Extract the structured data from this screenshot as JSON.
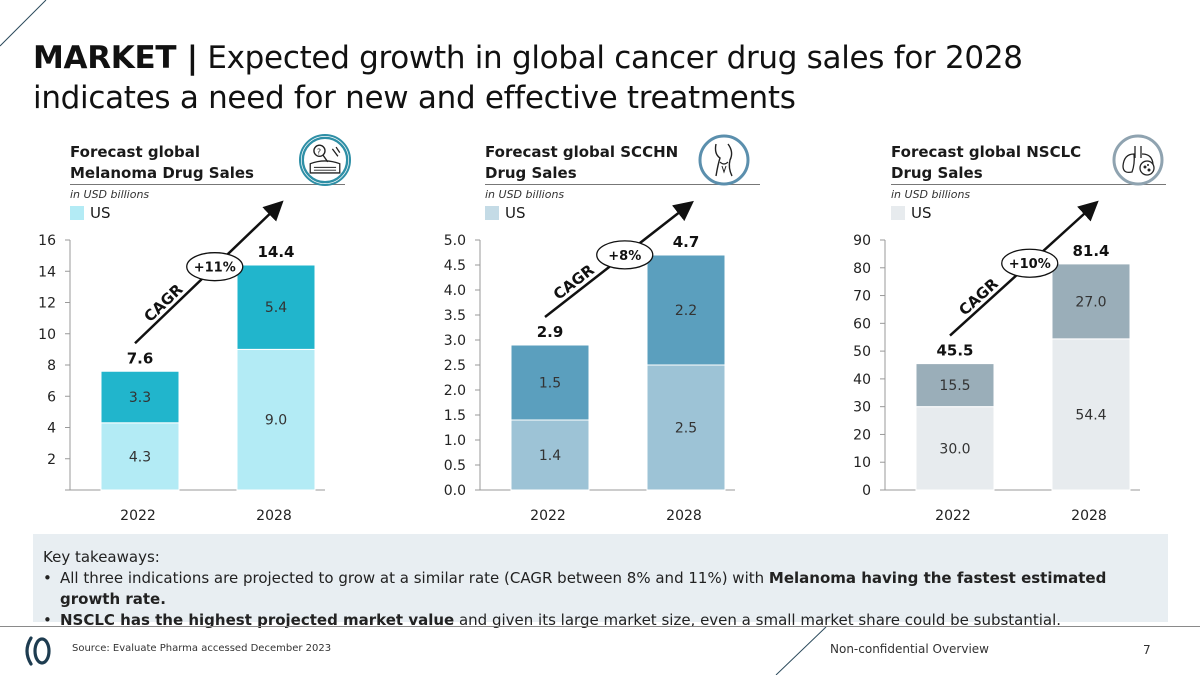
{
  "title": {
    "bold": "MARKET |",
    "rest": "Expected growth in global cancer drug sales for 2028 indicates a need for new and effective treatments"
  },
  "chart_data": [
    {
      "type": "bar",
      "stacked": true,
      "title": "Forecast global Melanoma Drug Sales",
      "unit": "in USD billions",
      "legend": [
        "US"
      ],
      "categories": [
        "2022",
        "2028"
      ],
      "series": [
        {
          "name": "lower segment",
          "values": [
            4.3,
            9.0
          ],
          "color": "#b3ebf5"
        },
        {
          "name": "upper segment",
          "values": [
            3.3,
            5.4
          ],
          "color": "#21b5cc"
        }
      ],
      "totals": [
        7.6,
        14.4
      ],
      "totals_labels": [
        "7.6",
        "14.4"
      ],
      "value_labels": [
        [
          "4.3",
          "9.0"
        ],
        [
          "3.3",
          "5.4"
        ]
      ],
      "ylim": [
        0,
        16
      ],
      "yticks": [
        0,
        2,
        4,
        6,
        8,
        10,
        12,
        14,
        16
      ],
      "ytick_labels": [
        "",
        "2",
        "4",
        "6",
        "8",
        "10",
        "12",
        "14",
        "16"
      ],
      "cagr_label": "CAGR",
      "cagr_value": "+11%",
      "legend_color": "#b3ebf5"
    },
    {
      "type": "bar",
      "stacked": true,
      "title": "Forecast global SCCHN Drug Sales",
      "unit": "in USD billions",
      "legend": [
        "US"
      ],
      "categories": [
        "2022",
        "2028"
      ],
      "series": [
        {
          "name": "lower segment",
          "values": [
            1.4,
            2.5
          ],
          "color": "#9dc3d6"
        },
        {
          "name": "upper segment",
          "values": [
            1.5,
            2.2
          ],
          "color": "#5b9fbe"
        }
      ],
      "totals": [
        2.9,
        4.7
      ],
      "totals_labels": [
        "2.9",
        "4.7"
      ],
      "value_labels": [
        [
          "1.4",
          "2.5"
        ],
        [
          "1.5",
          "2.2"
        ]
      ],
      "ylim": [
        0,
        5
      ],
      "yticks": [
        0,
        0.5,
        1,
        1.5,
        2,
        2.5,
        3,
        3.5,
        4,
        4.5,
        5
      ],
      "ytick_labels": [
        "0.0",
        "0.5",
        "1.0",
        "1.5",
        "2.0",
        "2.5",
        "3.0",
        "3.5",
        "4.0",
        "4.5",
        "5.0"
      ],
      "cagr_label": "CAGR",
      "cagr_value": "+8%",
      "legend_color": "#c4dbe6"
    },
    {
      "type": "bar",
      "stacked": true,
      "title": "Forecast global NSCLC Drug Sales",
      "unit": "in USD billions",
      "legend": [
        "US"
      ],
      "categories": [
        "2022",
        "2028"
      ],
      "series": [
        {
          "name": "lower segment",
          "values": [
            30.0,
            54.4
          ],
          "color": "#e7ebee"
        },
        {
          "name": "upper segment",
          "values": [
            15.5,
            27.0
          ],
          "color": "#9aaeb9"
        }
      ],
      "totals": [
        45.5,
        81.4
      ],
      "totals_labels": [
        "45.5",
        "81.4"
      ],
      "value_labels": [
        [
          "30.0",
          "54.4"
        ],
        [
          "15.5",
          "27.0"
        ]
      ],
      "ylim": [
        0,
        90
      ],
      "yticks": [
        0,
        10,
        20,
        30,
        40,
        50,
        60,
        70,
        80,
        90
      ],
      "ytick_labels": [
        "0",
        "10",
        "20",
        "30",
        "40",
        "50",
        "60",
        "70",
        "80",
        "90"
      ],
      "cagr_label": "CAGR",
      "cagr_value": "+10%",
      "legend_color": "#e7ebee"
    }
  ],
  "takeaways": {
    "heading": "Key takeaways:",
    "item1_pre": "All three indications are projected to grow at a similar rate (CAGR between 8% and 11%) with ",
    "item1_bold": "Melanoma having the fastest estimated growth rate.",
    "item2_bold": "NSCLC has the highest projected market value",
    "item2_post": " and given its large market size, even a small market share could be substantial."
  },
  "footer": {
    "source": "Source: Evaluate Pharma accessed December 2023",
    "label": "Non-confidential Overview",
    "page": "7"
  },
  "colors": {
    "icon_melanoma": "#2e8fa6",
    "icon_scchn": "#5b8fad",
    "icon_nsclc": "#8fa3b0",
    "text_dark": "#1a1a1a"
  },
  "icons": [
    "skin-lesion-icon",
    "throat-icon",
    "lungs-icon",
    "logo-icon"
  ]
}
